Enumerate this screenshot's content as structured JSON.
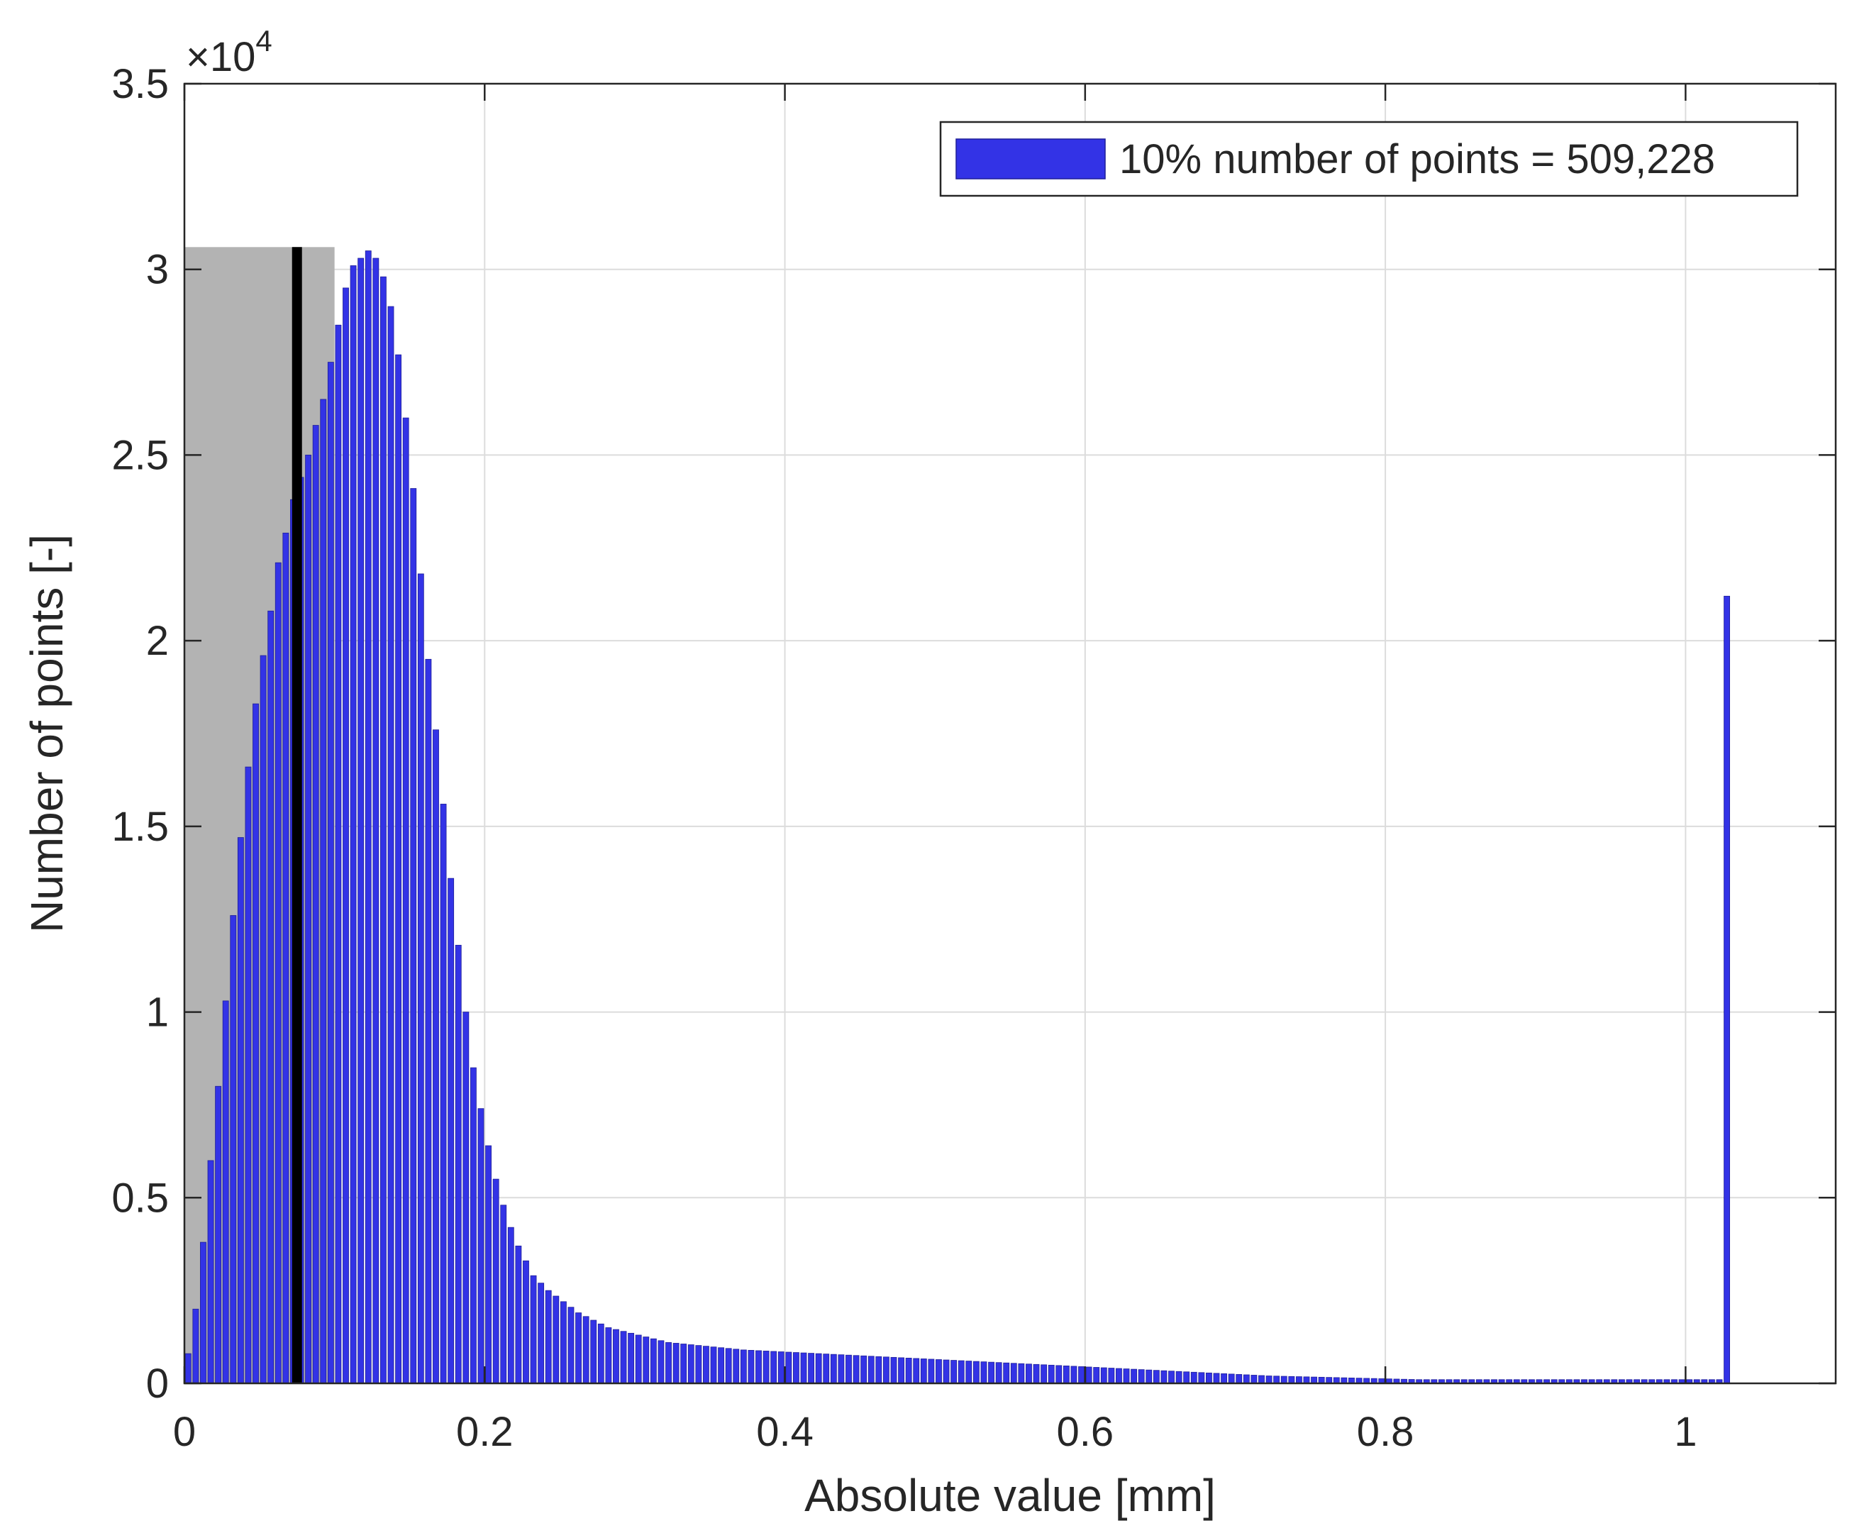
{
  "chart_data": {
    "type": "bar",
    "title": "",
    "xlabel": "Absolute value [mm]",
    "ylabel": "Number of points [-]",
    "y_exponent_label": "×10",
    "y_exponent_power": "4",
    "xlim": [
      0,
      1.1
    ],
    "ylim": [
      0,
      35000
    ],
    "xticks": [
      0,
      0.2,
      0.4,
      0.6,
      0.8,
      1
    ],
    "xtick_labels": [
      "0",
      "0.2",
      "0.4",
      "0.6",
      "0.8",
      "1"
    ],
    "yticks": [
      0,
      5000,
      10000,
      15000,
      20000,
      25000,
      30000,
      35000
    ],
    "ytick_labels": [
      "0",
      "0.5",
      "1",
      "1.5",
      "2",
      "2.5",
      "3",
      "3.5"
    ],
    "grid": true,
    "legend": {
      "position": "top-right",
      "entries": [
        "10% number of points = 509,228"
      ]
    },
    "bar_color": "#3333e6",
    "bar_edge_color": "#1f1f99",
    "bin_width": 0.005,
    "bins_start": 0,
    "series": [
      {
        "name": "10% number of points = 509,228",
        "values": [
          800,
          2000,
          3800,
          6000,
          8000,
          10300,
          12600,
          14700,
          16600,
          18300,
          19600,
          20800,
          22100,
          22900,
          23800,
          24400,
          25000,
          25800,
          26500,
          27500,
          28500,
          29500,
          30100,
          30300,
          30500,
          30300,
          29800,
          29000,
          27700,
          26000,
          24100,
          21800,
          19500,
          17600,
          15600,
          13600,
          11800,
          10000,
          8500,
          7400,
          6400,
          5500,
          4800,
          4200,
          3700,
          3300,
          2900,
          2700,
          2500,
          2350,
          2200,
          2050,
          1900,
          1800,
          1700,
          1600,
          1500,
          1450,
          1400,
          1350,
          1300,
          1250,
          1200,
          1150,
          1100,
          1080,
          1060,
          1040,
          1020,
          1000,
          980,
          960,
          940,
          920,
          900,
          890,
          880,
          870,
          860,
          850,
          840,
          830,
          820,
          810,
          800,
          790,
          780,
          770,
          760,
          750,
          740,
          730,
          720,
          710,
          700,
          690,
          680,
          670,
          660,
          650,
          640,
          630,
          620,
          610,
          600,
          590,
          580,
          570,
          560,
          550,
          540,
          530,
          520,
          510,
          500,
          490,
          480,
          470,
          460,
          450,
          440,
          430,
          420,
          410,
          400,
          390,
          380,
          370,
          360,
          350,
          340,
          330,
          320,
          310,
          300,
          290,
          280,
          270,
          260,
          250,
          240,
          230,
          220,
          210,
          200,
          195,
          190,
          185,
          180,
          175,
          170,
          165,
          160,
          155,
          150,
          145,
          140,
          135,
          130,
          125,
          120,
          115,
          110,
          105,
          100,
          100,
          100,
          100,
          100,
          100,
          100,
          100,
          100,
          100,
          100,
          100,
          100,
          100,
          100,
          100,
          100,
          100,
          100,
          100,
          100,
          100,
          100,
          100,
          100,
          100,
          100,
          100,
          100,
          100,
          100,
          100,
          100,
          100,
          100,
          100,
          100,
          100,
          100,
          100,
          100,
          21200
        ]
      }
    ],
    "shaded_region": {
      "x_start": 0,
      "x_end": 0.1,
      "y_top": 30600,
      "color": "#b3b3b3"
    },
    "vertical_line": {
      "x": 0.075,
      "y_top": 30600,
      "color": "#000000"
    }
  }
}
